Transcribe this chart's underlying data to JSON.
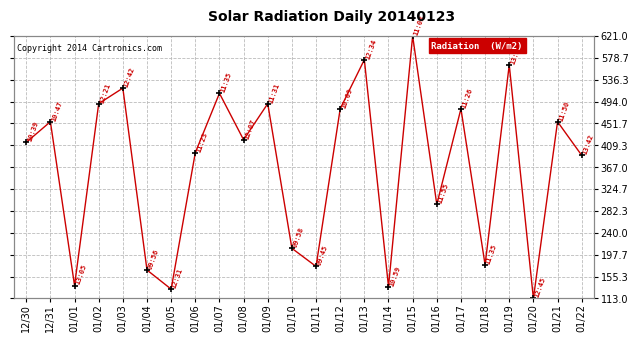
{
  "title": "Solar Radiation Daily 20140123",
  "copyright": "Copyright 2014 Cartronics.com",
  "legend_text": "Radiation  (W/m2)",
  "background_color": "#ffffff",
  "line_color": "#cc0000",
  "marker_color": "#000000",
  "label_color": "#cc0000",
  "grid_color": "#bbbbbb",
  "ylim": [
    113.0,
    621.0
  ],
  "yticks": [
    113.0,
    155.3,
    197.7,
    240.0,
    282.3,
    324.7,
    367.0,
    409.3,
    451.7,
    494.0,
    536.3,
    578.7,
    621.0
  ],
  "dates": [
    "12/30",
    "12/31",
    "01/01",
    "01/02",
    "01/03",
    "01/04",
    "01/05",
    "01/06",
    "01/07",
    "01/08",
    "01/09",
    "01/10",
    "01/11",
    "01/12",
    "01/13",
    "01/14",
    "01/15",
    "01/16",
    "01/17",
    "01/18",
    "01/19",
    "01/20",
    "01/21",
    "01/22"
  ],
  "values": [
    415,
    455,
    138,
    490,
    520,
    168,
    131,
    395,
    510,
    420,
    490,
    210,
    175,
    480,
    575,
    136,
    621,
    295,
    480,
    178,
    565,
    113,
    455,
    390
  ],
  "point_labels": [
    "10:39",
    "10:47",
    "13:05",
    "12:21",
    "12:42",
    "09:56",
    "12:31",
    "11:23",
    "11:35",
    "12:07",
    "11:31",
    "09:58",
    "09:45",
    "10:09",
    "12:34",
    "10:59",
    "11:03",
    "11:55",
    "11:26",
    "11:35",
    "13:25",
    "12:45",
    "11:50",
    "13:42"
  ]
}
